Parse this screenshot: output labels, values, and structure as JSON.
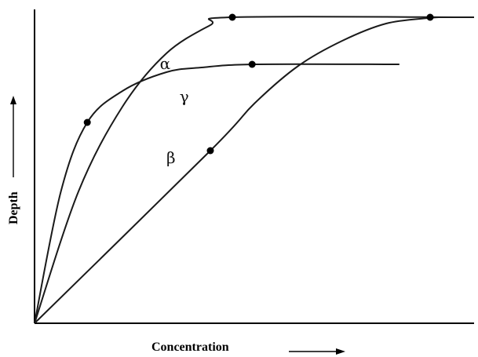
{
  "chart_data": {
    "type": "line",
    "title": "",
    "xlabel": "Concentration",
    "ylabel": "Depth",
    "grid": false,
    "legend": "none",
    "series": [
      {
        "name": "α",
        "points": [
          [
            0,
            0
          ],
          [
            0.1,
            0.42
          ],
          [
            0.2,
            0.69
          ],
          [
            0.3,
            0.86
          ],
          [
            0.4,
            0.95
          ],
          [
            0.45,
            0.975
          ],
          [
            1.0,
            0.975
          ]
        ],
        "markers": [
          [
            0.45,
            0.975
          ]
        ]
      },
      {
        "name": "γ",
        "points": [
          [
            0,
            0
          ],
          [
            0.06,
            0.42
          ],
          [
            0.12,
            0.64
          ],
          [
            0.2,
            0.74
          ],
          [
            0.3,
            0.8
          ],
          [
            0.38,
            0.815
          ],
          [
            0.5,
            0.825
          ],
          [
            0.83,
            0.825
          ]
        ],
        "markers": [
          [
            0.12,
            0.64
          ],
          [
            0.495,
            0.825
          ]
        ]
      },
      {
        "name": "β",
        "points": [
          [
            0,
            0
          ],
          [
            0.4,
            0.55
          ],
          [
            0.5,
            0.7
          ],
          [
            0.6,
            0.82
          ],
          [
            0.7,
            0.9
          ],
          [
            0.8,
            0.955
          ],
          [
            0.9,
            0.973
          ],
          [
            0.93,
            0.975
          ],
          [
            1.0,
            0.975
          ]
        ],
        "markers": [
          [
            0.4,
            0.55
          ],
          [
            0.9,
            0.975
          ]
        ]
      }
    ],
    "xlim": [
      0,
      1
    ],
    "ylim": [
      0,
      1
    ]
  }
}
